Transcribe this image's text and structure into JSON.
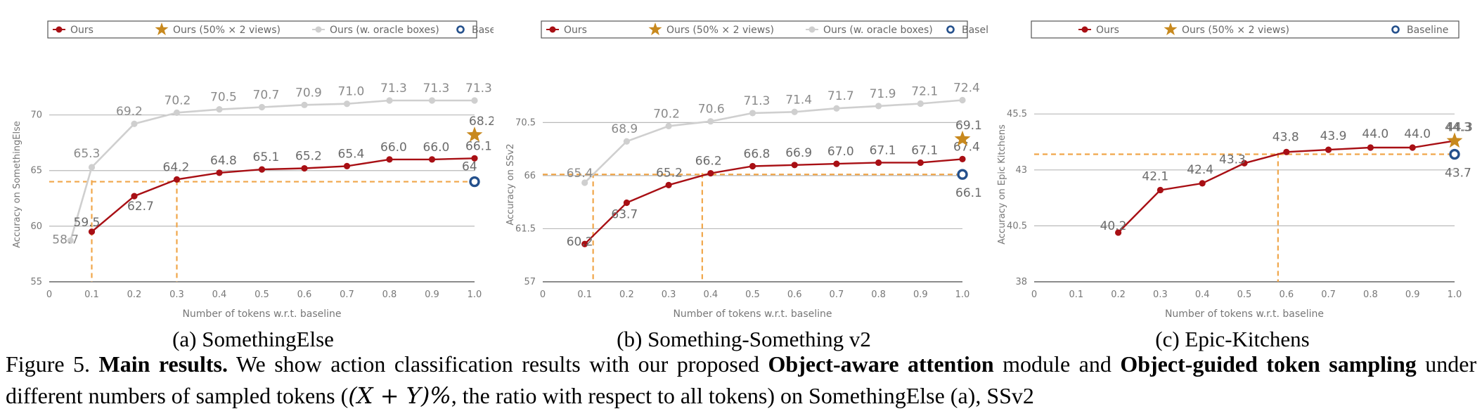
{
  "chart_data": [
    {
      "type": "line",
      "subcaption": "(a) SomethingElse",
      "xlabel": "Number of tokens w.r.t. baseline",
      "ylabel": "Accuracy on SomethingElse",
      "xlim": [
        0,
        1.0
      ],
      "ylim": [
        55,
        72.5
      ],
      "xticks": [
        "0",
        "0.1",
        "0.2",
        "0.3",
        "0.4",
        "0.5",
        "0.6",
        "0.7",
        "0.8",
        "0.9",
        "1.0"
      ],
      "yticks": [
        "55",
        "60",
        "65",
        "70"
      ],
      "ytick_values": [
        55,
        60,
        65,
        70
      ],
      "grid": "horizontal",
      "legend": [
        "Ours",
        "Ours (50% × 2 views)",
        "Ours (w. oracle boxes)",
        "Baseline"
      ],
      "legend_position": "top",
      "series": [
        {
          "name": "Ours (w. oracle boxes)",
          "color": "#cfcfcf",
          "marker": "circle",
          "x": [
            0.05,
            0.1,
            0.2,
            0.3,
            0.4,
            0.5,
            0.6,
            0.7,
            0.8,
            0.9,
            1.0
          ],
          "y": [
            58.7,
            65.3,
            69.2,
            70.2,
            70.5,
            70.7,
            70.9,
            71.0,
            71.3,
            71.3,
            71.3
          ],
          "labels": [
            "58.7",
            "65.3",
            "69.2",
            "70.2",
            "70.5",
            "70.7",
            "70.9",
            "71.0",
            "71.3",
            "71.3",
            "71.3"
          ]
        },
        {
          "name": "Ours",
          "color": "#a80f14",
          "marker": "circle",
          "x": [
            0.1,
            0.2,
            0.3,
            0.4,
            0.5,
            0.6,
            0.7,
            0.8,
            0.9,
            1.0
          ],
          "y": [
            59.5,
            62.7,
            64.2,
            64.8,
            65.1,
            65.2,
            65.4,
            66.0,
            66.0,
            66.1
          ],
          "labels": [
            "59.5",
            "62.7",
            "64.2",
            "64.8",
            "65.1",
            "65.2",
            "65.4",
            "66.0",
            "66.0",
            "66.1"
          ]
        }
      ],
      "star": {
        "name": "Ours (50% × 2 views)",
        "x": 1.0,
        "y": 68.2,
        "label": "68.2",
        "color": "#c8891e"
      },
      "baseline": {
        "name": "Baseline",
        "x": 1.0,
        "y": 64.0,
        "label": "64",
        "color": "#24508c"
      },
      "reference_lines": {
        "color": "#f0a64a",
        "y": 64.0,
        "x": [
          0.1,
          0.3
        ]
      }
    },
    {
      "type": "line",
      "subcaption": "(b) Something-Something v2",
      "xlabel": "Number of tokens w.r.t. baseline",
      "ylabel": "Accuracy on SSv2",
      "xlim": [
        0,
        1.0
      ],
      "ylim": [
        57,
        73.5
      ],
      "xticks": [
        "0",
        "0.1",
        "0.2",
        "0.3",
        "0.4",
        "0.5",
        "0.6",
        "0.7",
        "0.8",
        "0.9",
        "1.0"
      ],
      "yticks": [
        "57",
        "61.5",
        "66",
        "70.5"
      ],
      "ytick_values": [
        57,
        61.5,
        66,
        70.5
      ],
      "grid": "horizontal",
      "legend": [
        "Ours",
        "Ours (50% × 2 views)",
        "Ours (w. oracle boxes)",
        "Baseline"
      ],
      "legend_position": "top",
      "series": [
        {
          "name": "Ours (w. oracle boxes)",
          "color": "#cfcfcf",
          "marker": "circle",
          "x": [
            0.1,
            0.2,
            0.3,
            0.4,
            0.5,
            0.6,
            0.7,
            0.8,
            0.9,
            1.0
          ],
          "y": [
            65.4,
            68.9,
            70.2,
            70.6,
            71.3,
            71.4,
            71.7,
            71.9,
            72.1,
            72.4
          ],
          "labels": [
            "65.4",
            "68.9",
            "70.2",
            "70.6",
            "71.3",
            "71.4",
            "71.7",
            "71.9",
            "72.1",
            "72.4"
          ]
        },
        {
          "name": "Ours",
          "color": "#a80f14",
          "marker": "circle",
          "x": [
            0.1,
            0.2,
            0.3,
            0.4,
            0.5,
            0.6,
            0.7,
            0.8,
            0.9,
            1.0
          ],
          "y": [
            60.2,
            63.7,
            65.2,
            66.2,
            66.8,
            66.9,
            67.0,
            67.1,
            67.1,
            67.4
          ],
          "labels": [
            "60.2",
            "63.7",
            "65.2",
            "66.2",
            "66.8",
            "66.9",
            "67.0",
            "67.1",
            "67.1",
            "67.4"
          ]
        }
      ],
      "star": {
        "name": "Ours (50% × 2 views)",
        "x": 1.0,
        "y": 69.1,
        "label": "69.1",
        "color": "#c8891e"
      },
      "baseline": {
        "name": "Baseline",
        "x": 1.0,
        "y": 66.1,
        "label": "66.1",
        "color": "#24508c"
      },
      "reference_lines": {
        "color": "#f0a64a",
        "y": 66.1,
        "x": [
          0.12,
          0.38
        ]
      }
    },
    {
      "type": "line",
      "subcaption": "(c) Epic-Kitchens",
      "xlabel": "Number of tokens w.r.t. baseline",
      "ylabel": "Accuracy on Epic Kitchens",
      "xlim": [
        0,
        1.0
      ],
      "ylim": [
        38,
        46.7
      ],
      "xticks": [
        "0",
        "0.1",
        "0.2",
        "0.3",
        "0.4",
        "0.5",
        "0.6",
        "0.7",
        "0.8",
        "0.9",
        "1.0"
      ],
      "yticks": [
        "38",
        "40.5",
        "43",
        "45.5"
      ],
      "ytick_values": [
        38,
        40.5,
        43,
        45.5
      ],
      "grid": "horizontal",
      "legend": [
        "Ours",
        "Ours (50% × 2 views)",
        "Baseline"
      ],
      "legend_position": "top",
      "series": [
        {
          "name": "Ours",
          "color": "#a80f14",
          "marker": "circle",
          "x": [
            0.2,
            0.3,
            0.4,
            0.5,
            0.6,
            0.7,
            0.8,
            0.9,
            1.0
          ],
          "y": [
            40.2,
            42.1,
            42.4,
            43.3,
            43.8,
            43.9,
            44.0,
            44.0,
            44.3
          ],
          "labels": [
            "40.2",
            "42.1",
            "42.4",
            "43.3",
            "43.8",
            "43.9",
            "44.0",
            "44.0",
            "44.3"
          ]
        }
      ],
      "star": {
        "name": "Ours (50% × 2 views)",
        "x": 1.0,
        "y": 44.3,
        "label": "44.3",
        "color": "#c8891e"
      },
      "baseline": {
        "name": "Baseline",
        "x": 1.0,
        "y": 43.7,
        "label": "43.7",
        "color": "#24508c"
      },
      "reference_lines": {
        "color": "#f0a64a",
        "y": 43.7,
        "x": [
          0.58
        ]
      }
    }
  ],
  "caption": {
    "figure_label": "Figure 5.",
    "bold_title": "Main results.",
    "text_1": "We show action classification results with our proposed",
    "bold_1": "Object-aware attention",
    "text_2": "module and",
    "bold_2": "Object-guided token sampling",
    "text_3": "under different numbers of sampled tokens (",
    "math": "(X + Y)%",
    "text_4": ", the ratio with respect to all tokens) on SomethingElse (a), SSv2"
  }
}
